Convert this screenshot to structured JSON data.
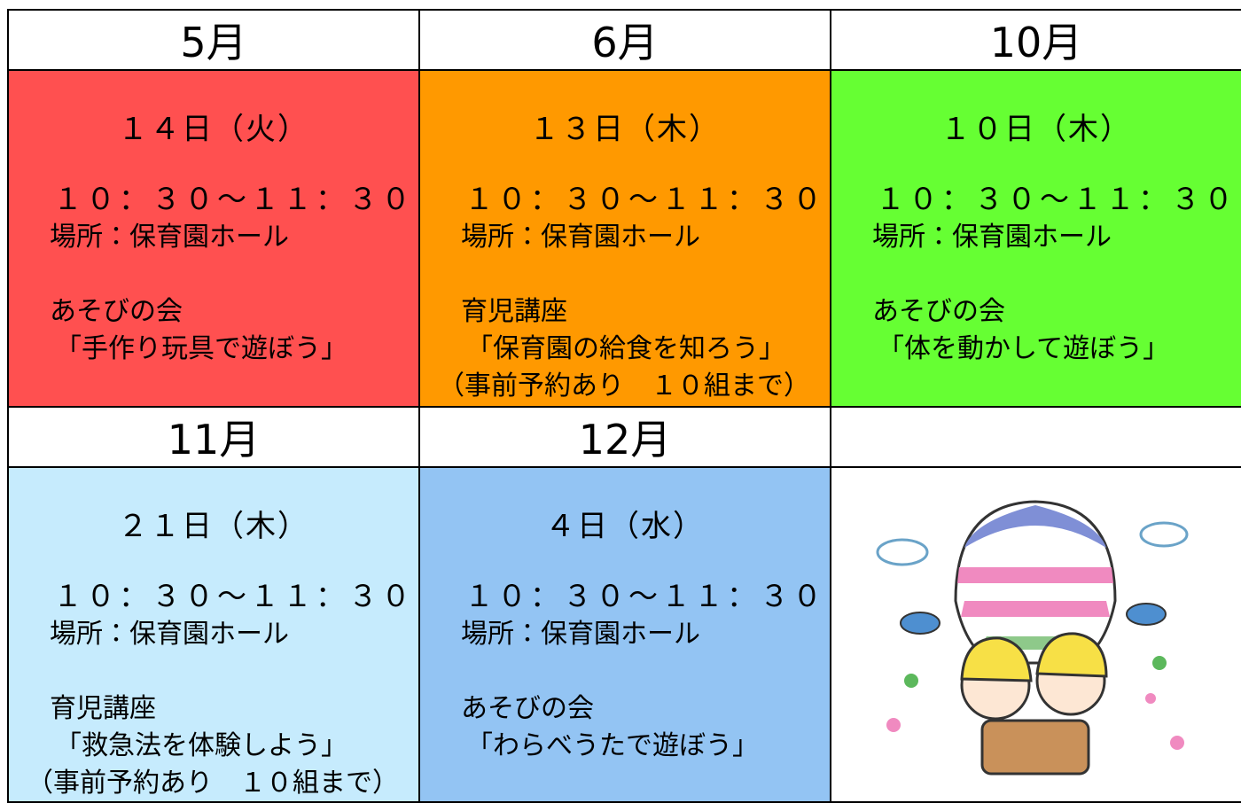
{
  "schedule": [
    {
      "month": "5月",
      "date": "１４日（火）",
      "time": "１０：３０〜１１：３０",
      "place": "場所：保育園ホール",
      "title": "あそびの会",
      "lines": [
        "「手作り玩具で遊ぼう」"
      ],
      "color": "#ff5050"
    },
    {
      "month": "6月",
      "date": "１３日（木）",
      "time": "１０：３０〜１１：３０",
      "place": "場所：保育園ホール",
      "title": "育児講座",
      "lines": [
        "「保育園の給食を知ろう」",
        "（事前予約あり　１０組まで）"
      ],
      "color": "#ff9900"
    },
    {
      "month": "10月",
      "date": "１０日（木）",
      "time": "１０：３０〜１１：３０",
      "place": "場所：保育園ホール",
      "title": "あそびの会",
      "lines": [
        "「体を動かして遊ぼう」"
      ],
      "color": "#66ff33"
    },
    {
      "month": "11月",
      "date": "２１日（木）",
      "time": "１０：３０〜１１：３０",
      "place": "場所：保育園ホール",
      "title": "育児講座",
      "lines": [
        "「救急法を体験しよう」",
        "（事前予約あり　１０組まで）"
      ],
      "color": "#c6ebfd"
    },
    {
      "month": "12月",
      "date": "４日（水）",
      "time": "１０：３０〜１１：３０",
      "place": "場所：保育園ホール",
      "title": "あそびの会",
      "lines": [
        "「わらべうたで遊ぼう」"
      ],
      "color": "#93c4f3"
    }
  ]
}
